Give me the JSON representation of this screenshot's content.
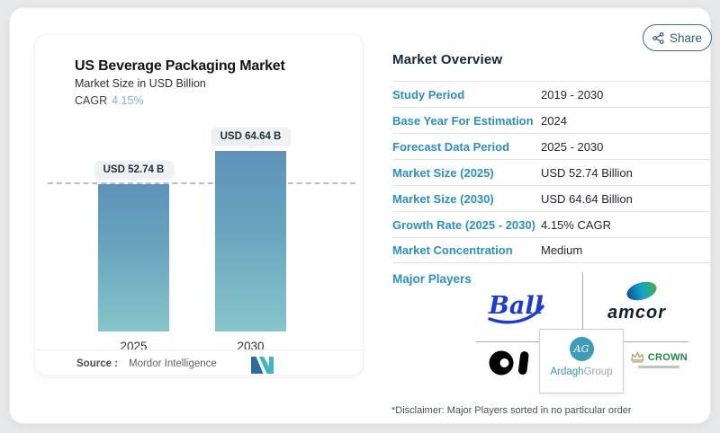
{
  "header": {
    "share_label": "Share"
  },
  "chart_card": {
    "title": "US Beverage Packaging Market",
    "subtitle": "Market Size in USD Billion",
    "cagr_label": "CAGR",
    "cagr_value": "4.15%",
    "bars": [
      {
        "year": "2025",
        "label": "USD 52.74 B"
      },
      {
        "year": "2030",
        "label": "USD 64.64 B"
      }
    ],
    "source_label": "Source :",
    "source_value": "Mordor Intelligence"
  },
  "chart_data": {
    "type": "bar",
    "title": "US Beverage Packaging Market",
    "ylabel": "Market Size in USD Billion",
    "categories": [
      "2025",
      "2030"
    ],
    "values": [
      52.74,
      64.64
    ],
    "data_labels": [
      "USD 52.74 B",
      "USD 64.64 B"
    ],
    "unit": "USD Billion",
    "cagr_percent": 4.15,
    "reference_line_value": 52.74,
    "grid": false,
    "legend": false,
    "bar_color_top": "#5e92b8",
    "bar_color_bottom": "#84c6c9"
  },
  "overview": {
    "heading": "Market Overview",
    "rows": [
      {
        "label": "Study Period",
        "value": "2019 - 2030"
      },
      {
        "label": "Base Year For Estimation",
        "value": "2024"
      },
      {
        "label": "Forecast Data Period",
        "value": "2025 - 2030"
      },
      {
        "label": "Market Size (2025)",
        "value": "USD 52.74 Billion"
      },
      {
        "label": "Market Size (2030)",
        "value": "USD 64.64 Billion"
      },
      {
        "label": "Growth Rate (2025 - 2030)",
        "value": "4.15% CAGR"
      },
      {
        "label": "Market Concentration",
        "value": "Medium"
      }
    ]
  },
  "players": {
    "heading": "Major Players",
    "names": [
      "Ball",
      "amcor",
      "O-I",
      "ArdaghGroup",
      "CROWN"
    ],
    "ball_text": "Ball",
    "amcor_text": "amcor",
    "ardagh_monogram": "AG",
    "ardagh_text_1": "Ardagh",
    "ardagh_text_2": "Group",
    "crown_text": "CROWN"
  },
  "disclaimer": "*Disclaimer: Major Players sorted in no particular order",
  "colors": {
    "accent_blue": "#2b8fc1",
    "heading_navy": "#13283f",
    "cagr_value_blue": "#7db2d2",
    "ball_blue": "#1d3ad6",
    "crown_green": "#1d8a41",
    "ardagh_teal": "#3f9cb8"
  }
}
